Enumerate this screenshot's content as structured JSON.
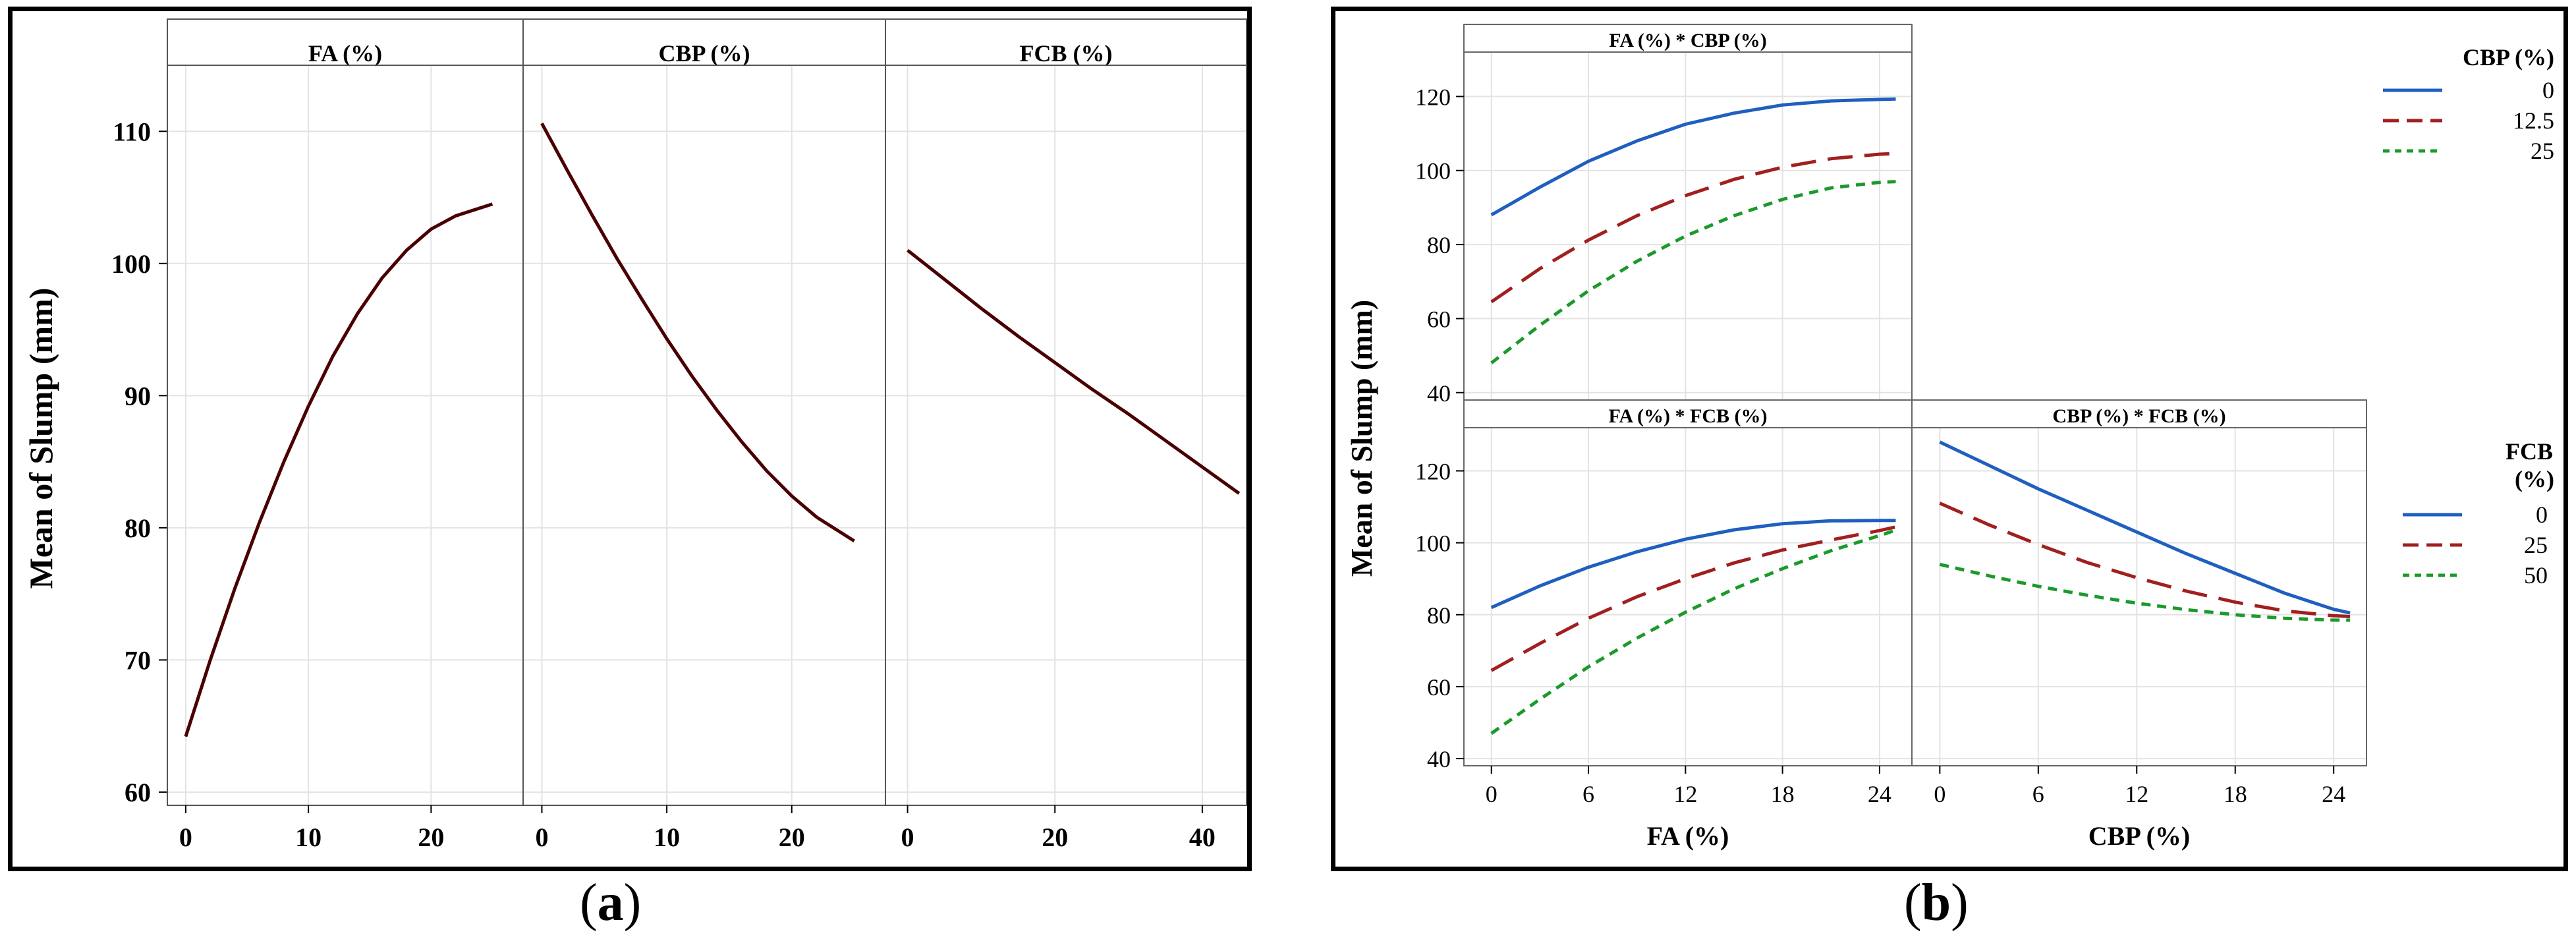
{
  "captions": {
    "a_open": "(",
    "a_letter": "a",
    "a_close": ")",
    "b_open": "(",
    "b_letter": "b",
    "b_close": ")"
  },
  "chart_data": [
    {
      "id": "a",
      "type": "line",
      "ylabel": "Mean of Slump (mm)",
      "ylim": [
        59,
        115
      ],
      "yticks": [
        60,
        70,
        80,
        90,
        100,
        110
      ],
      "grid": true,
      "color": "#4a0000",
      "panels": [
        {
          "title": "FA (%)",
          "xlim": [
            -1.5,
            27.5
          ],
          "xticks": [
            0,
            10,
            20
          ],
          "x": [
            0,
            2,
            4,
            6,
            8,
            10,
            12,
            14,
            16,
            18,
            20,
            22,
            25
          ],
          "y": [
            64.2,
            70.0,
            75.4,
            80.4,
            85.0,
            89.2,
            93.0,
            96.2,
            98.9,
            101.0,
            102.6,
            103.6,
            104.5
          ]
        },
        {
          "title": "CBP (%)",
          "xlim": [
            -1.5,
            27.5
          ],
          "xticks": [
            0,
            10,
            20
          ],
          "x": [
            0,
            2,
            4,
            6,
            8,
            10,
            12,
            14,
            16,
            18,
            20,
            22,
            25
          ],
          "y": [
            110.6,
            107.1,
            103.7,
            100.4,
            97.3,
            94.3,
            91.5,
            88.9,
            86.5,
            84.3,
            82.4,
            80.8,
            79.0
          ],
          "line_title": "CBP (%)"
        },
        {
          "title": "FCB (%)",
          "xlim": [
            -3,
            46
          ],
          "xticks": [
            0,
            20,
            40
          ],
          "x": [
            0,
            5,
            10,
            15,
            20,
            25,
            30,
            35,
            40,
            45
          ],
          "y": [
            101.0,
            98.8,
            96.6,
            94.5,
            92.5,
            90.5,
            88.6,
            86.6,
            84.6,
            82.6
          ]
        }
      ]
    },
    {
      "id": "b",
      "type": "line",
      "ylabel": "Mean of Slump (mm)",
      "ylim": [
        38,
        132
      ],
      "yticks": [
        40,
        60,
        80,
        100,
        120
      ],
      "xlim": [
        -1.7,
        26
      ],
      "xticks": [
        0,
        6,
        12,
        18,
        24
      ],
      "xlabels": [
        "FA (%)",
        "CBP (%)"
      ],
      "grid": true,
      "panels": [
        {
          "title": "FA (%) * CBP (%)",
          "x": [
            0,
            3,
            6,
            9,
            12,
            15,
            18,
            21,
            24,
            25
          ],
          "series": [
            {
              "name": "0",
              "y": [
                88,
                95.5,
                102.5,
                108,
                112.5,
                115.5,
                117.7,
                118.8,
                119.2,
                119.3
              ]
            },
            {
              "name": "12.5",
              "y": [
                64.5,
                73.5,
                81.2,
                87.8,
                93.2,
                97.6,
                100.9,
                103.2,
                104.4,
                104.6
              ]
            },
            {
              "name": "25",
              "y": [
                48,
                58.2,
                67.5,
                75.5,
                82.3,
                87.8,
                92.2,
                95.3,
                96.8,
                97.0
              ]
            }
          ]
        },
        {
          "title": "FA (%) * FCB (%)",
          "x": [
            0,
            3,
            6,
            9,
            12,
            15,
            18,
            21,
            24,
            25
          ],
          "series": [
            {
              "name": "0",
              "y": [
                82,
                88,
                93.2,
                97.5,
                101,
                103.6,
                105.3,
                106.1,
                106.2,
                106.2
              ]
            },
            {
              "name": "25",
              "y": [
                64.5,
                72,
                79,
                85,
                90,
                94.4,
                98,
                100.8,
                103.4,
                104.4
              ]
            },
            {
              "name": "50",
              "y": [
                47,
                56.5,
                65.5,
                73.5,
                80.7,
                87.2,
                92.8,
                97.8,
                102,
                103.5
              ]
            }
          ]
        },
        {
          "title": "CBP (%) * FCB (%)",
          "x": [
            0,
            3,
            6,
            9,
            12,
            15,
            18,
            21,
            24,
            25
          ],
          "series": [
            {
              "name": "0",
              "y": [
                128,
                121.5,
                115,
                109,
                103,
                97,
                91.5,
                86,
                81.5,
                80.5
              ]
            },
            {
              "name": "25",
              "y": [
                111,
                105,
                99.5,
                94.5,
                90.3,
                86.6,
                83.5,
                81.1,
                79.7,
                79.5
              ]
            },
            {
              "name": "50",
              "y": [
                94,
                90.8,
                87.9,
                85.4,
                83.2,
                81.4,
                80.0,
                79.0,
                78.5,
                78.5
              ]
            }
          ]
        }
      ],
      "series_colors": [
        "#1f5fbf",
        "#a11f1f",
        "#1a9a2a"
      ],
      "legends": [
        {
          "title": "CBP (%)",
          "entries": [
            "0",
            "12.5",
            "25"
          ]
        },
        {
          "title": "FCB (%)",
          "title_line1": "FCB",
          "title_line2": "(%)",
          "entries": [
            "0",
            "25",
            "50"
          ]
        }
      ]
    }
  ]
}
